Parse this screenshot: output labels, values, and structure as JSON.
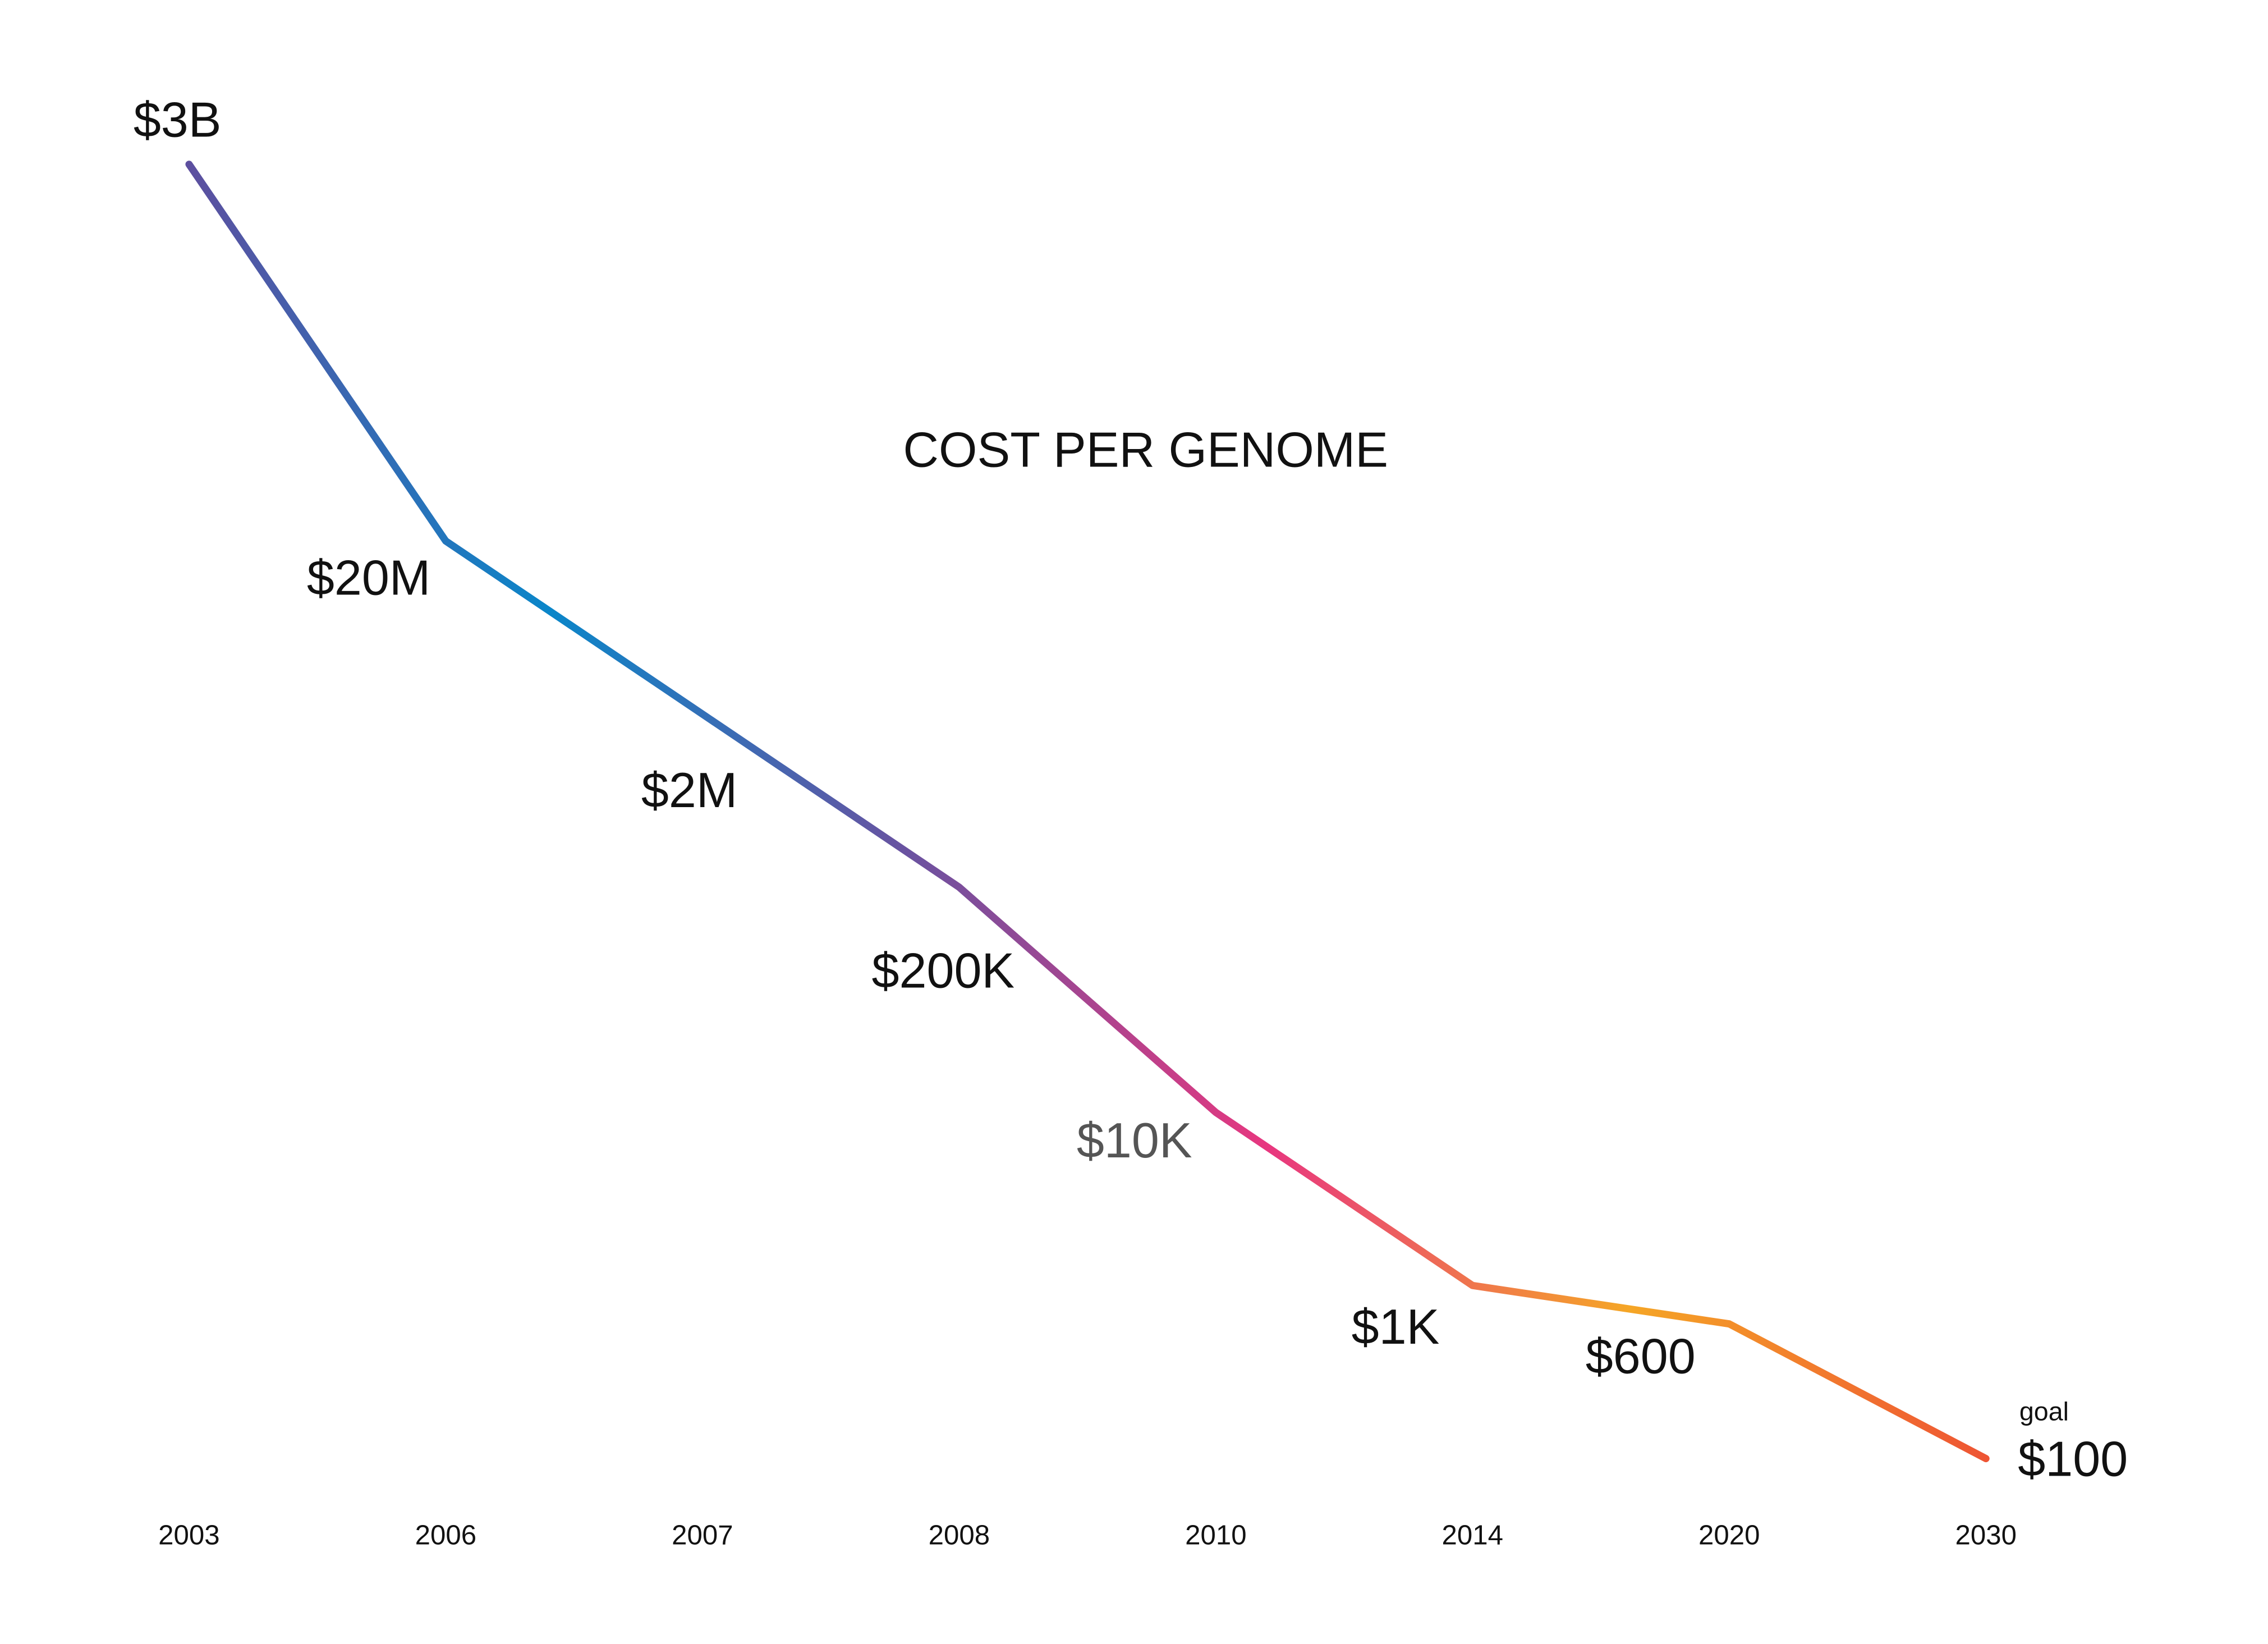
{
  "chart_data": {
    "type": "line",
    "title": "COST PER GENOME",
    "categories": [
      "2003",
      "2006",
      "2007",
      "2008",
      "2010",
      "2014",
      "2020",
      "2030"
    ],
    "values": [
      3000000000,
      20000000,
      2000000,
      200000,
      10000,
      1000,
      600,
      100
    ],
    "value_labels": [
      "$3B",
      "$20M",
      "$2M",
      "$200K",
      "$10K",
      "$1K",
      "$600",
      "$100"
    ],
    "annotation": "goal",
    "log_scale": true,
    "ylim": [
      100,
      3000000000
    ],
    "grid": false,
    "gradient_colors": [
      "#5d4f9f",
      "#0a86c9",
      "#6a52a0",
      "#e8377f",
      "#f5a626",
      "#ee5434"
    ]
  }
}
